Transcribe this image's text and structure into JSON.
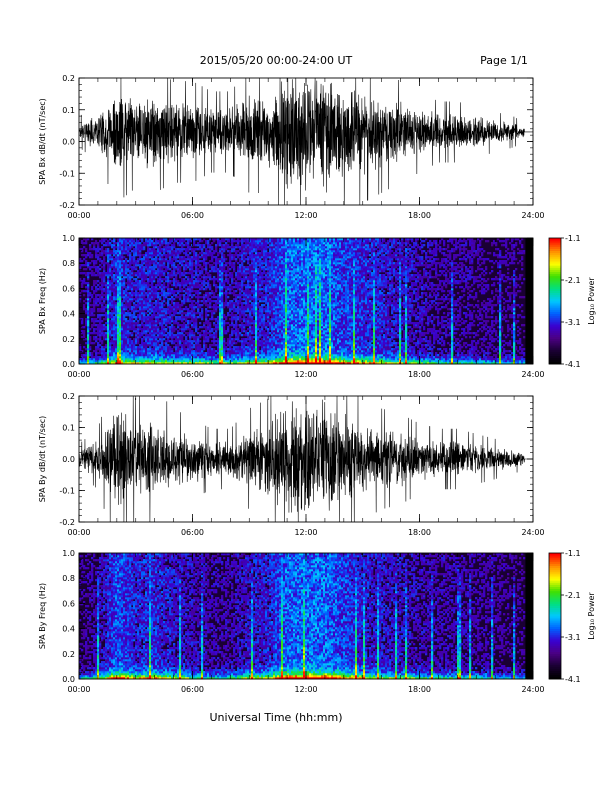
{
  "header": {
    "title": "2015/05/20  00:00-24:00 UT",
    "page": "Page 1/1"
  },
  "xlabel": "Universal Time (hh:mm)",
  "colors": {
    "trace": "#000000",
    "colormap": [
      "#000000",
      "#1a0033",
      "#4b0082",
      "#3a00d0",
      "#0060ff",
      "#00c8ff",
      "#00e080",
      "#40e000",
      "#ffff00",
      "#ff9000",
      "#ff0000"
    ]
  },
  "chart_data": [
    {
      "type": "line",
      "ylabel": "SPA Bx dB/dt (nT/sec)",
      "xlim": [
        "00:00",
        "24:00"
      ],
      "ylim": [
        -0.2,
        0.2
      ],
      "x_ticks": [
        "00:00",
        "06:00",
        "12:00",
        "18:00",
        "24:00"
      ],
      "y_ticks": [
        -0.2,
        -0.1,
        0.0,
        0.1,
        0.2
      ],
      "series": [
        {
          "x_hours": [
            0,
            1,
            2,
            3,
            4,
            5,
            6,
            7,
            8,
            9,
            10,
            11,
            12,
            13,
            14,
            15,
            16,
            17,
            18,
            19,
            20,
            21,
            22,
            23,
            23.5
          ],
          "envelope": [
            0.03,
            0.06,
            0.14,
            0.11,
            0.12,
            0.1,
            0.1,
            0.08,
            0.08,
            0.12,
            0.12,
            0.2,
            0.2,
            0.2,
            0.16,
            0.14,
            0.12,
            0.1,
            0.08,
            0.06,
            0.06,
            0.05,
            0.04,
            0.03,
            0.02
          ],
          "offset": 0.03
        }
      ]
    },
    {
      "type": "heatmap",
      "ylabel": "SPA Bx Freq (Hz)",
      "xlim": [
        "00:00",
        "24:00"
      ],
      "ylim": [
        0.0,
        1.0
      ],
      "x_ticks": [
        "00:00",
        "06:00",
        "12:00",
        "18:00",
        "24:00"
      ],
      "y_ticks": [
        0.0,
        0.2,
        0.4,
        0.6,
        0.8,
        1.0
      ],
      "colorbar": {
        "label": "Log₁₀ Power",
        "ticks": [
          -4.1,
          -3.1,
          -2.1,
          -1.1
        ]
      }
    },
    {
      "type": "line",
      "ylabel": "SPA By dB/dt (nT/sec)",
      "xlim": [
        "00:00",
        "24:00"
      ],
      "ylim": [
        -0.2,
        0.2
      ],
      "x_ticks": [
        "00:00",
        "06:00",
        "12:00",
        "18:00",
        "24:00"
      ],
      "y_ticks": [
        -0.2,
        -0.1,
        0.0,
        0.1,
        0.2
      ],
      "series": [
        {
          "x_hours": [
            0,
            1,
            2,
            3,
            4,
            5,
            6,
            7,
            8,
            9,
            10,
            11,
            12,
            13,
            14,
            15,
            16,
            17,
            18,
            19,
            20,
            21,
            22,
            23,
            23.5
          ],
          "envelope": [
            0.03,
            0.06,
            0.18,
            0.12,
            0.14,
            0.1,
            0.08,
            0.06,
            0.06,
            0.1,
            0.12,
            0.2,
            0.2,
            0.2,
            0.16,
            0.12,
            0.1,
            0.09,
            0.07,
            0.06,
            0.06,
            0.05,
            0.04,
            0.03,
            0.02
          ],
          "offset": 0.0
        }
      ]
    },
    {
      "type": "heatmap",
      "ylabel": "SPA By Freq (Hz)",
      "xlim": [
        "00:00",
        "24:00"
      ],
      "ylim": [
        0.0,
        1.0
      ],
      "x_ticks": [
        "00:00",
        "06:00",
        "12:00",
        "18:00",
        "24:00"
      ],
      "y_ticks": [
        0.0,
        0.2,
        0.4,
        0.6,
        0.8,
        1.0
      ],
      "colorbar": {
        "label": "Log₁₀ Power",
        "ticks": [
          -4.1,
          -3.1,
          -2.1,
          -1.1
        ]
      }
    }
  ]
}
